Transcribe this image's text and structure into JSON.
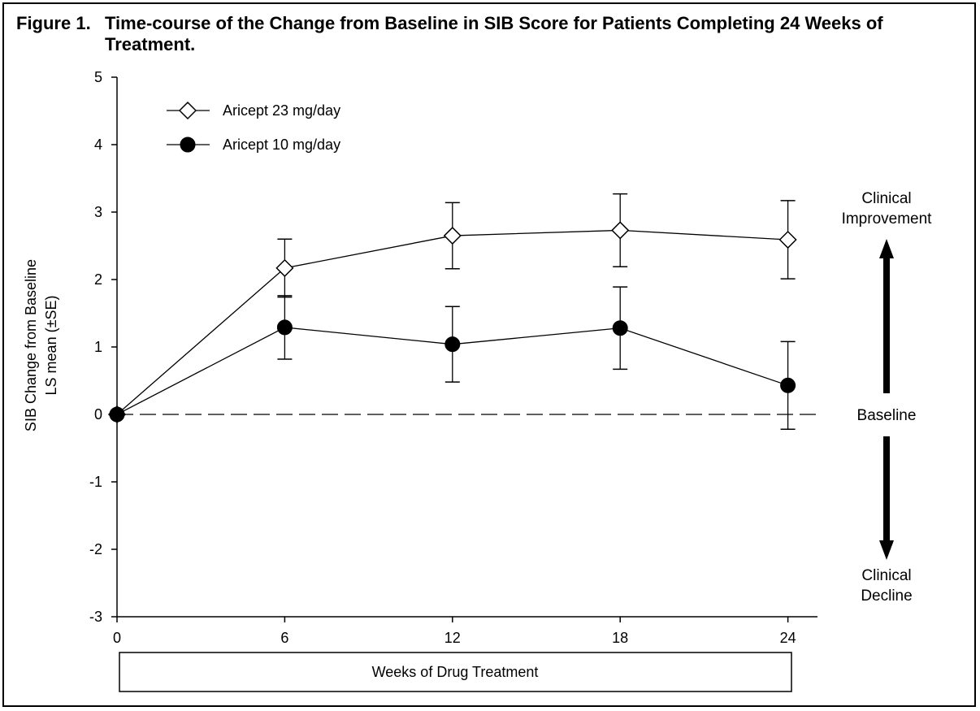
{
  "figure": {
    "label": "Figure 1.",
    "title": "Time-course of the Change from Baseline in SIB Score for Patients Completing 24 Weeks of Treatment."
  },
  "chart_data": {
    "type": "line",
    "title": "Time-course of the Change from Baseline in SIB Score for Patients Completing 24 Weeks of Treatment.",
    "xlabel": "Weeks of Drug Treatment",
    "ylabel_lines": [
      "SIB Change from Baseline",
      "LS mean (±SE)"
    ],
    "x": [
      0,
      6,
      12,
      18,
      24
    ],
    "xticks": [
      "0",
      "6",
      "12",
      "18",
      "24"
    ],
    "yticks": [
      "5",
      "4",
      "3",
      "2",
      "1",
      "0",
      "-1",
      "-2",
      "-3"
    ],
    "xlim": [
      0,
      25
    ],
    "ylim": [
      -3,
      5
    ],
    "baseline": 0,
    "legend_position": "top-left",
    "series": [
      {
        "name": "Aricept 23 mg/day",
        "marker": "open-diamond",
        "values": [
          0,
          2.17,
          2.65,
          2.73,
          2.59
        ],
        "se": [
          0,
          0.43,
          0.49,
          0.54,
          0.58
        ]
      },
      {
        "name": "Aricept 10 mg/day",
        "marker": "filled-circle",
        "values": [
          0,
          1.29,
          1.04,
          1.28,
          0.43
        ],
        "se": [
          0,
          0.47,
          0.56,
          0.61,
          0.65
        ]
      }
    ],
    "annotations": {
      "improvement": [
        "Clinical",
        "Improvement"
      ],
      "baseline": "Baseline",
      "decline": [
        "Clinical",
        "Decline"
      ]
    }
  }
}
